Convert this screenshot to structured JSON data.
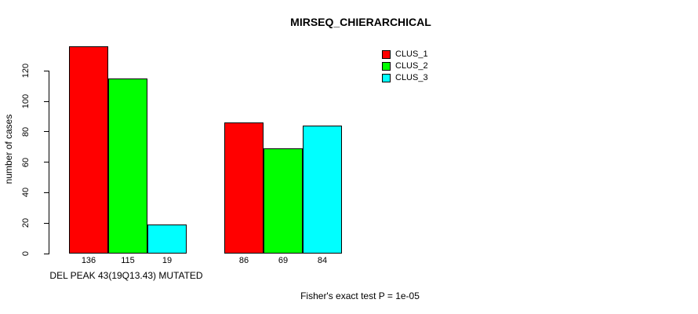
{
  "chart_data": {
    "type": "bar",
    "title": "MIRSEQ_CHIERARCHICAL",
    "ylabel": "number of cases",
    "xlabel": "DEL PEAK 43(19Q13.43) MUTATED",
    "annotation": "Fisher's exact test P = 1e-05",
    "ylim": [
      0,
      136
    ],
    "yticks": [
      0,
      20,
      40,
      60,
      80,
      100,
      120
    ],
    "grid": false,
    "group_count": 2,
    "group_labels": [
      "DEL PEAK 43(19Q13.43) MUTATED",
      ""
    ],
    "series": [
      {
        "name": "CLUS_1",
        "color": "#ff0000",
        "values": [
          136,
          86
        ]
      },
      {
        "name": "CLUS_2",
        "color": "#00ff00",
        "values": [
          115,
          69
        ]
      },
      {
        "name": "CLUS_3",
        "color": "#00ffff",
        "values": [
          19,
          84
        ]
      }
    ],
    "bar_value_labels": [
      [
        136,
        115,
        19
      ],
      [
        86,
        69,
        84
      ]
    ],
    "legend": {
      "position": "top-right",
      "entries": [
        "CLUS_1",
        "CLUS_2",
        "CLUS_3"
      ]
    }
  }
}
